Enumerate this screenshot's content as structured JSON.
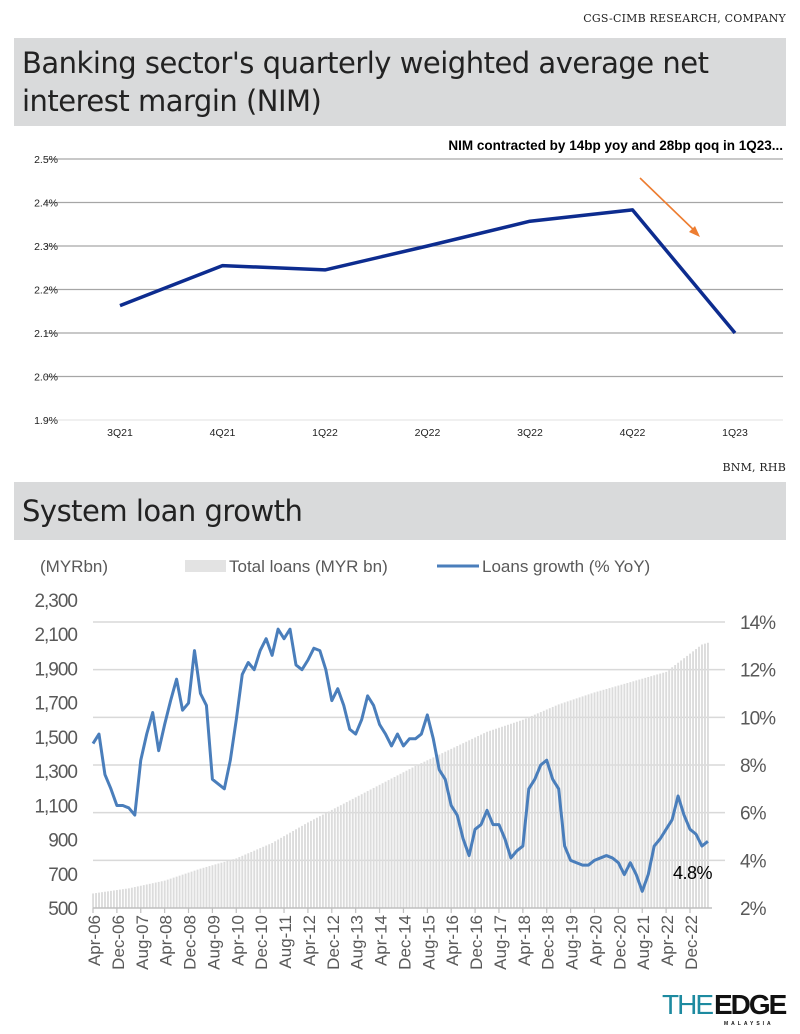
{
  "source_top": "CGS-CIMB RESEARCH, COMPANY",
  "header1": "Banking sector's quarterly weighted average net interest margin (NIM)",
  "source_middle": "BNM, RHB",
  "header2": "System loan growth",
  "logo": {
    "the": "THE",
    "edge": "EDGE",
    "sub": "MALAYSIA"
  },
  "colors": {
    "nim_line": "#0d2c8f",
    "arrow": "#ed7d31",
    "growth_line": "#4a7ebb",
    "bars": "#e3e3e3",
    "header_bg": "#d9dadb",
    "logo_teal": "#1d8aa0"
  },
  "chart_data": [
    {
      "type": "line",
      "annotation": "NIM contracted by 14bp yoy and 28bp qoq in 1Q23...",
      "categories": [
        "3Q21",
        "4Q21",
        "1Q22",
        "2Q22",
        "3Q22",
        "4Q22",
        "1Q23"
      ],
      "values": [
        2.163,
        2.255,
        2.245,
        2.3,
        2.357,
        2.383,
        2.1
      ],
      "ylim": [
        1.9,
        2.5
      ],
      "yticks": [
        "1.9%",
        "2.0%",
        "2.1%",
        "2.2%",
        "2.3%",
        "2.4%",
        "2.5%"
      ],
      "grid": true,
      "arrow_icon": "down-right-arrow"
    },
    {
      "type": "bar+line",
      "left_unit_label": "(MYRbn)",
      "legend": [
        "Total loans (MYR bn)",
        "Loans growth (% YoY)"
      ],
      "legend_placement": "top",
      "left_ylim": [
        500,
        2300
      ],
      "left_ticks": [
        "500",
        "700",
        "900",
        "1,100",
        "1,300",
        "1,500",
        "1,700",
        "1,900",
        "2,100",
        "2,300"
      ],
      "right_ylim": [
        2,
        14
      ],
      "right_ticks": [
        "2%",
        "4%",
        "6%",
        "8%",
        "10%",
        "12%",
        "14%"
      ],
      "x_ticks": [
        "Apr-06",
        "Dec-06",
        "Aug-07",
        "Apr-08",
        "Dec-08",
        "Aug-09",
        "Apr-10",
        "Dec-10",
        "Aug-11",
        "Apr-12",
        "Dec-12",
        "Aug-13",
        "Apr-14",
        "Dec-14",
        "Aug-15",
        "Apr-16",
        "Dec-16",
        "Aug-17",
        "Apr-18",
        "Dec-18",
        "Aug-19",
        "Apr-20",
        "Dec-20",
        "Aug-21",
        "Apr-22",
        "Dec-22"
      ],
      "end_label": "4.8%",
      "total_loans": [
        [
          "2006-04",
          585
        ],
        [
          "2007-04",
          615
        ],
        [
          "2008-04",
          660
        ],
        [
          "2009-04",
          730
        ],
        [
          "2010-04",
          790
        ],
        [
          "2011-04",
          880
        ],
        [
          "2012-04",
          1000
        ],
        [
          "2013-04",
          1110
        ],
        [
          "2014-04",
          1220
        ],
        [
          "2015-04",
          1330
        ],
        [
          "2016-04",
          1430
        ],
        [
          "2017-04",
          1530
        ],
        [
          "2018-04",
          1600
        ],
        [
          "2019-04",
          1690
        ],
        [
          "2020-04",
          1760
        ],
        [
          "2021-04",
          1820
        ],
        [
          "2022-04",
          1880
        ],
        [
          "2023-04",
          2040
        ],
        [
          "2023-06",
          2050
        ]
      ],
      "loans_growth": [
        [
          "2006-04",
          8.9
        ],
        [
          "2006-06",
          9.3
        ],
        [
          "2006-08",
          7.6
        ],
        [
          "2006-10",
          7.0
        ],
        [
          "2006-12",
          6.3
        ],
        [
          "2007-02",
          6.3
        ],
        [
          "2007-04",
          6.2
        ],
        [
          "2007-06",
          5.9
        ],
        [
          "2007-08",
          8.2
        ],
        [
          "2007-10",
          9.3
        ],
        [
          "2007-12",
          10.2
        ],
        [
          "2008-02",
          8.6
        ],
        [
          "2008-04",
          9.7
        ],
        [
          "2008-06",
          10.7
        ],
        [
          "2008-08",
          11.6
        ],
        [
          "2008-10",
          10.3
        ],
        [
          "2008-12",
          10.6
        ],
        [
          "2009-02",
          12.8
        ],
        [
          "2009-04",
          11.0
        ],
        [
          "2009-06",
          10.5
        ],
        [
          "2009-08",
          7.4
        ],
        [
          "2009-10",
          7.2
        ],
        [
          "2009-12",
          7.0
        ],
        [
          "2010-02",
          8.2
        ],
        [
          "2010-04",
          9.9
        ],
        [
          "2010-06",
          11.8
        ],
        [
          "2010-08",
          12.3
        ],
        [
          "2010-10",
          12.0
        ],
        [
          "2010-12",
          12.8
        ],
        [
          "2011-02",
          13.3
        ],
        [
          "2011-04",
          12.6
        ],
        [
          "2011-06",
          13.7
        ],
        [
          "2011-08",
          13.3
        ],
        [
          "2011-10",
          13.7
        ],
        [
          "2011-12",
          12.2
        ],
        [
          "2012-02",
          12.0
        ],
        [
          "2012-04",
          12.4
        ],
        [
          "2012-06",
          12.9
        ],
        [
          "2012-08",
          12.8
        ],
        [
          "2012-10",
          12.0
        ],
        [
          "2012-12",
          10.7
        ],
        [
          "2013-02",
          11.2
        ],
        [
          "2013-04",
          10.5
        ],
        [
          "2013-06",
          9.5
        ],
        [
          "2013-08",
          9.3
        ],
        [
          "2013-10",
          9.9
        ],
        [
          "2013-12",
          10.9
        ],
        [
          "2014-02",
          10.5
        ],
        [
          "2014-04",
          9.7
        ],
        [
          "2014-06",
          9.3
        ],
        [
          "2014-08",
          8.8
        ],
        [
          "2014-10",
          9.3
        ],
        [
          "2014-12",
          8.8
        ],
        [
          "2015-02",
          9.1
        ],
        [
          "2015-04",
          9.1
        ],
        [
          "2015-06",
          9.3
        ],
        [
          "2015-08",
          10.1
        ],
        [
          "2015-10",
          9.1
        ],
        [
          "2015-12",
          7.8
        ],
        [
          "2016-02",
          7.4
        ],
        [
          "2016-04",
          6.3
        ],
        [
          "2016-06",
          5.9
        ],
        [
          "2016-08",
          4.9
        ],
        [
          "2016-10",
          4.2
        ],
        [
          "2016-12",
          5.3
        ],
        [
          "2017-02",
          5.5
        ],
        [
          "2017-04",
          6.1
        ],
        [
          "2017-06",
          5.5
        ],
        [
          "2017-08",
          5.5
        ],
        [
          "2017-10",
          4.9
        ],
        [
          "2017-12",
          4.1
        ],
        [
          "2018-02",
          4.4
        ],
        [
          "2018-04",
          4.6
        ],
        [
          "2018-06",
          7.0
        ],
        [
          "2018-08",
          7.4
        ],
        [
          "2018-10",
          8.0
        ],
        [
          "2018-12",
          8.2
        ],
        [
          "2019-02",
          7.4
        ],
        [
          "2019-04",
          7.0
        ],
        [
          "2019-06",
          4.6
        ],
        [
          "2019-08",
          4.0
        ],
        [
          "2019-10",
          3.9
        ],
        [
          "2019-12",
          3.8
        ],
        [
          "2020-02",
          3.8
        ],
        [
          "2020-04",
          4.0
        ],
        [
          "2020-06",
          4.1
        ],
        [
          "2020-08",
          4.2
        ],
        [
          "2020-10",
          4.1
        ],
        [
          "2020-12",
          3.9
        ],
        [
          "2021-02",
          3.4
        ],
        [
          "2021-04",
          3.9
        ],
        [
          "2021-06",
          3.4
        ],
        [
          "2021-08",
          2.7
        ],
        [
          "2021-10",
          3.4
        ],
        [
          "2021-12",
          4.6
        ],
        [
          "2022-02",
          4.9
        ],
        [
          "2022-04",
          5.3
        ],
        [
          "2022-06",
          5.7
        ],
        [
          "2022-08",
          6.7
        ],
        [
          "2022-10",
          5.9
        ],
        [
          "2022-12",
          5.3
        ],
        [
          "2023-02",
          5.1
        ],
        [
          "2023-04",
          4.6
        ],
        [
          "2023-06",
          4.8
        ]
      ],
      "grid": true
    }
  ]
}
